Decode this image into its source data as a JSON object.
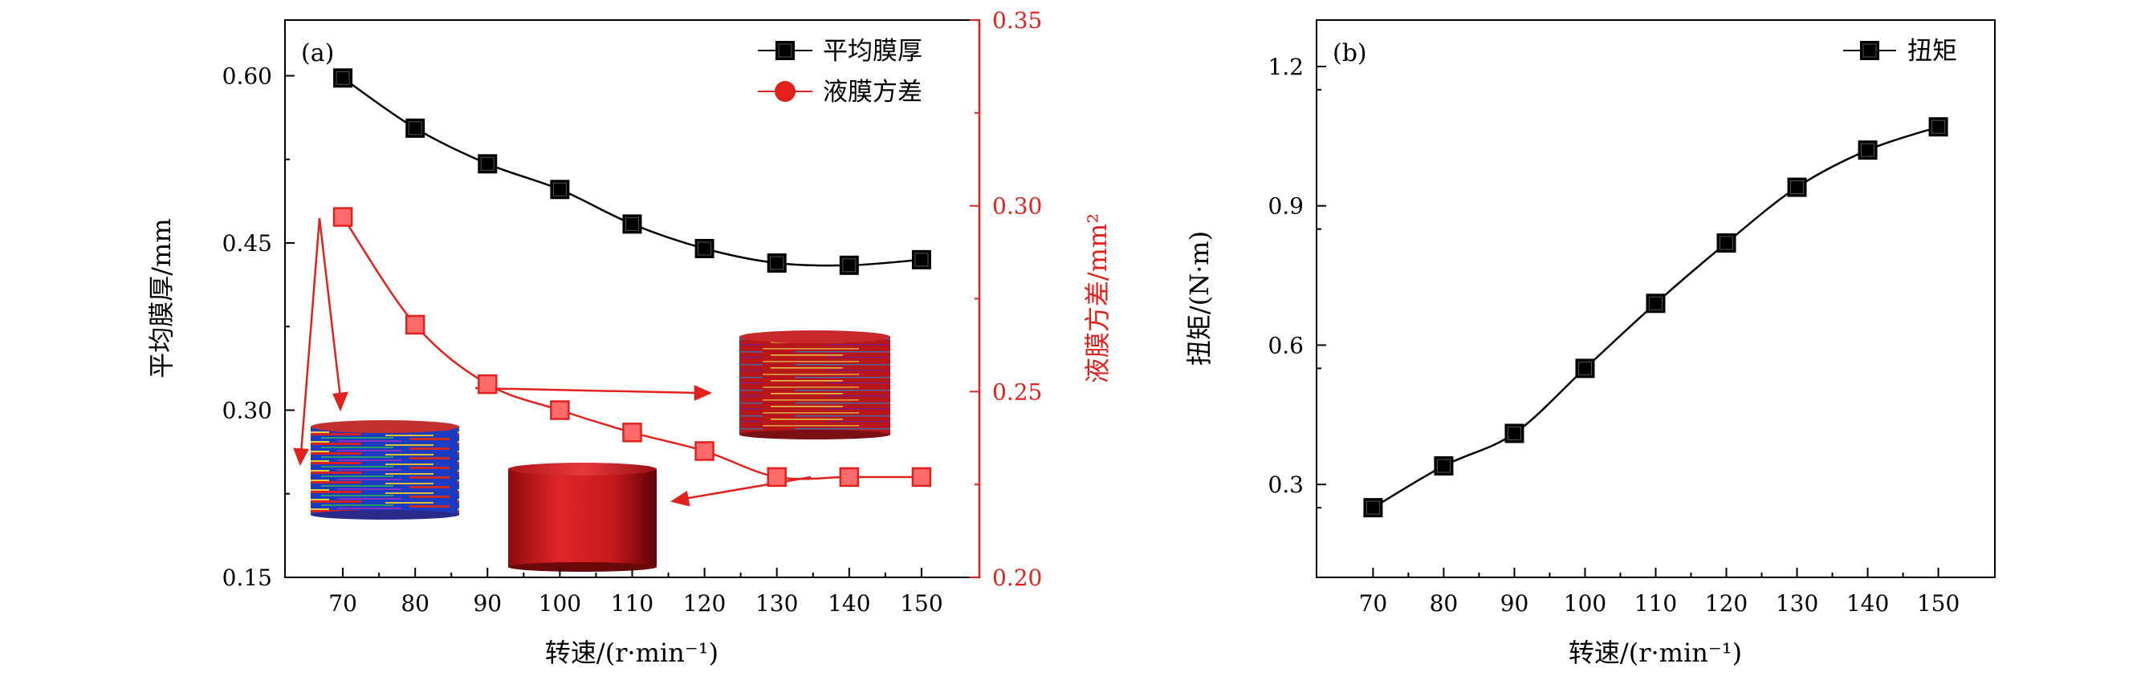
{
  "chart_data": [
    {
      "panel_label": "(a)",
      "type": "line",
      "x": [
        70,
        80,
        90,
        100,
        110,
        120,
        130,
        140,
        150
      ],
      "x_ticks": [
        70,
        80,
        90,
        100,
        110,
        120,
        130,
        140,
        150
      ],
      "xlabel": "转速/(r·min⁻¹)",
      "xlim": [
        62,
        158
      ],
      "left_axis": {
        "label": "平均膜厚/mm",
        "lim": [
          0.15,
          0.65
        ],
        "ticks": [
          "0.15",
          "0.30",
          "0.45",
          "0.60"
        ],
        "tick_values": [
          0.15,
          0.3,
          0.45,
          0.6
        ]
      },
      "right_axis": {
        "label": "液膜方差/mm²",
        "lim": [
          0.2,
          0.35
        ],
        "ticks": [
          "0.20",
          "0.25",
          "0.30",
          "0.35"
        ],
        "tick_values": [
          0.2,
          0.25,
          0.3,
          0.35
        ],
        "color": "#e3211c"
      },
      "series": [
        {
          "name": "平均膜厚",
          "axis": "left",
          "marker": "square",
          "color": "#000000",
          "values": [
            0.598,
            0.553,
            0.521,
            0.498,
            0.467,
            0.445,
            0.432,
            0.43,
            0.435
          ]
        },
        {
          "name": "液膜方差",
          "axis": "right",
          "marker": "square",
          "legend_marker": "circle",
          "color": "#e3211c",
          "values": [
            0.297,
            0.268,
            0.252,
            0.245,
            0.239,
            0.234,
            0.227,
            0.227,
            0.227
          ]
        }
      ],
      "legend_position": "top-right",
      "annotations": "液膜分布示意图 with red arrows pointing to 70, 90 and 130 r/min"
    },
    {
      "panel_label": "(b)",
      "type": "line",
      "x": [
        70,
        80,
        90,
        100,
        110,
        120,
        130,
        140,
        150
      ],
      "x_ticks": [
        70,
        80,
        90,
        100,
        110,
        120,
        130,
        140,
        150
      ],
      "xlabel": "转速/(r·min⁻¹)",
      "xlim": [
        62,
        158
      ],
      "left_axis": {
        "label": "扭矩/(N·m)",
        "lim": [
          0.1,
          1.3
        ],
        "ticks": [
          "0.3",
          "0.6",
          "0.9",
          "1.2"
        ],
        "tick_values": [
          0.3,
          0.6,
          0.9,
          1.2
        ]
      },
      "series": [
        {
          "name": "扭矩",
          "axis": "left",
          "marker": "square",
          "color": "#000000",
          "values": [
            0.25,
            0.34,
            0.41,
            0.55,
            0.69,
            0.82,
            0.94,
            1.02,
            1.07
          ]
        }
      ],
      "legend_position": "top-right"
    }
  ]
}
